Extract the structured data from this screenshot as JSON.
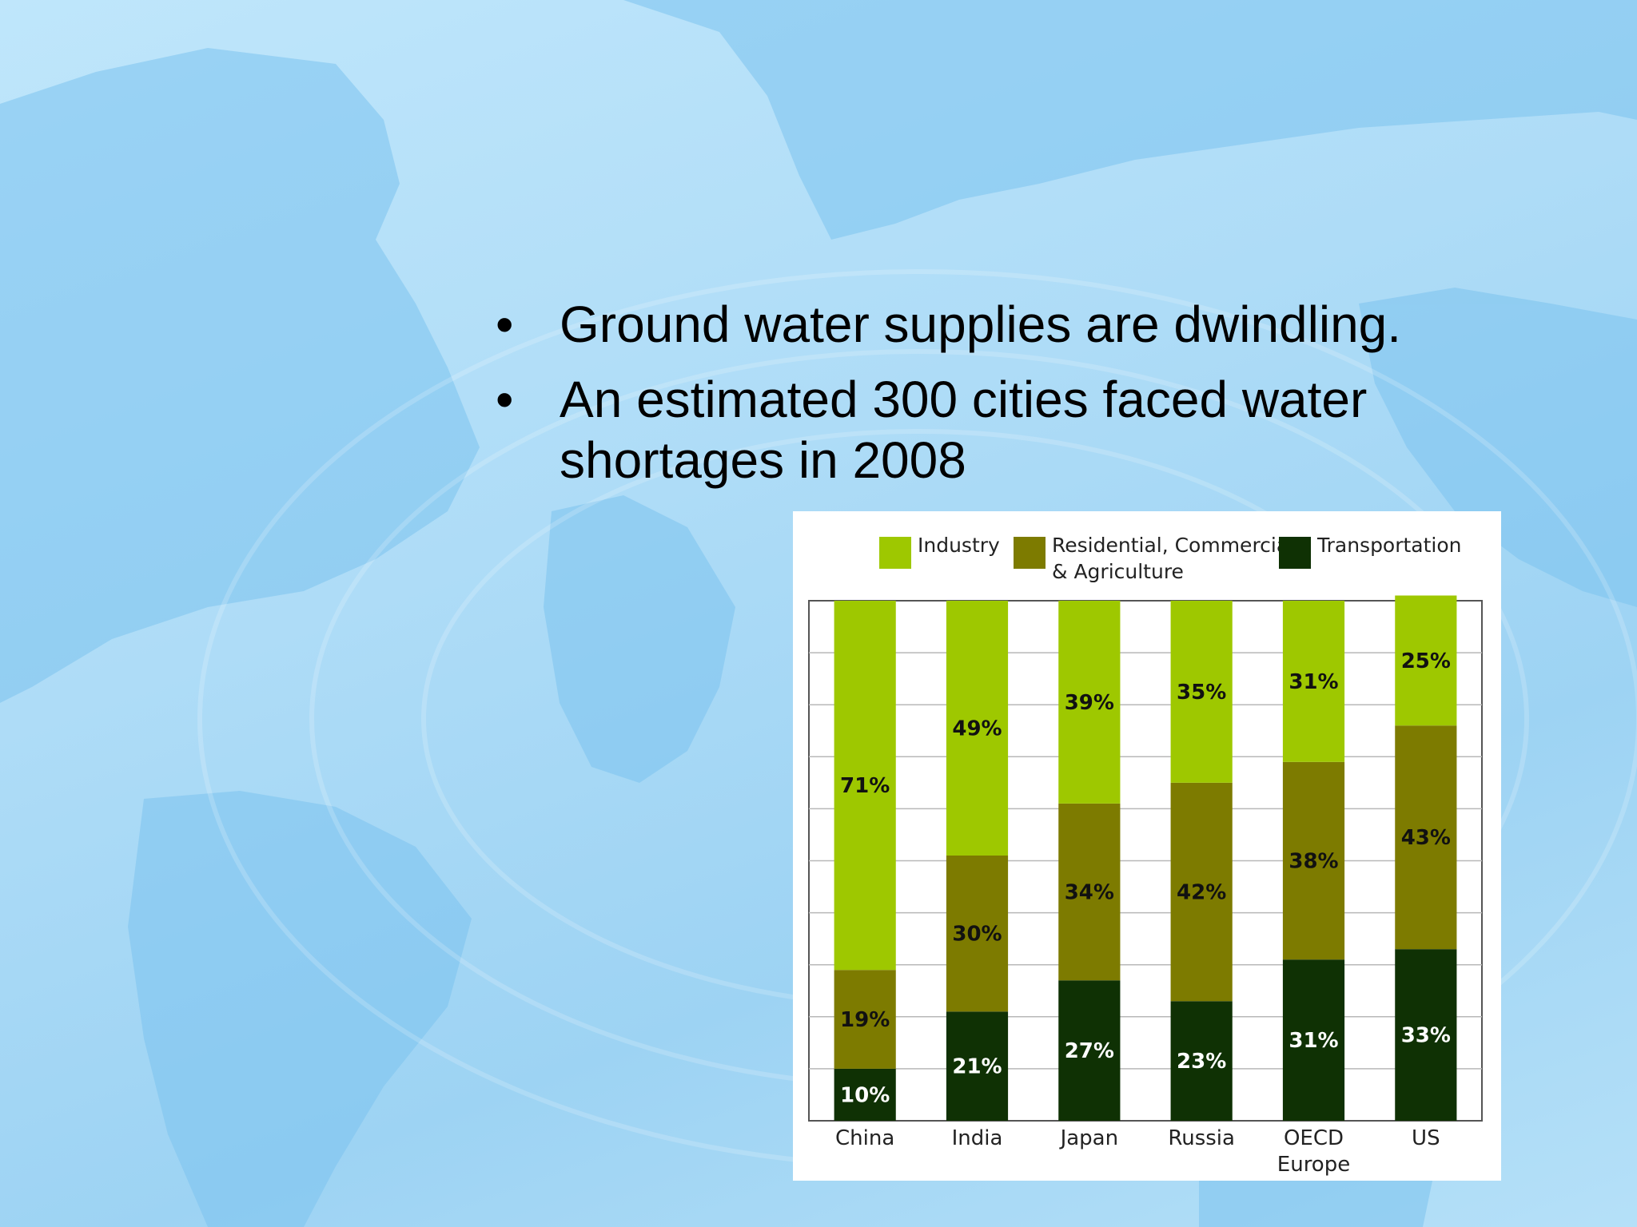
{
  "slide": {
    "bullets": [
      {
        "symbol": "•",
        "text": "Ground water supplies are dwindling."
      },
      {
        "symbol": "•",
        "text": "An estimated 300 cities faced water shortages in 2008"
      }
    ]
  },
  "colors": {
    "background": "#b5e0f8",
    "industry": "#9ec800",
    "residential": "#7d7b00",
    "transportation": "#0f3104"
  },
  "chart_data": {
    "type": "bar",
    "stacked": true,
    "categories": [
      "China",
      "India",
      "Japan",
      "Russia",
      "OECD Europe",
      "US"
    ],
    "category_lines": [
      [
        "China"
      ],
      [
        "India"
      ],
      [
        "Japan"
      ],
      [
        "Russia"
      ],
      [
        "OECD",
        "Europe"
      ],
      [
        "US"
      ]
    ],
    "series": [
      {
        "name": "Transportation",
        "color": "#0f3104",
        "values": [
          10,
          21,
          27,
          23,
          31,
          33
        ],
        "labels": [
          "10%",
          "21%",
          "27%",
          "23%",
          "31%",
          "33%"
        ]
      },
      {
        "name": "Residential, Commercial & Agriculture",
        "legend_lines": [
          "Residential, Commercial",
          "& Agriculture"
        ],
        "color": "#7d7b00",
        "values": [
          19,
          30,
          34,
          42,
          38,
          43
        ],
        "labels": [
          "19%",
          "30%",
          "34%",
          "42%",
          "38%",
          "43%"
        ]
      },
      {
        "name": "Industry",
        "color": "#9ec800",
        "values": [
          71,
          49,
          39,
          35,
          31,
          25
        ],
        "labels": [
          "71%",
          "49%",
          "39%",
          "35%",
          "31%",
          "25%"
        ]
      }
    ],
    "legend_order": [
      "Industry",
      "Residential, Commercial & Agriculture",
      "Transportation"
    ],
    "legend_placement": "top",
    "ylim": [
      0,
      100
    ],
    "grid": true,
    "title": "",
    "xlabel": "",
    "ylabel": ""
  }
}
